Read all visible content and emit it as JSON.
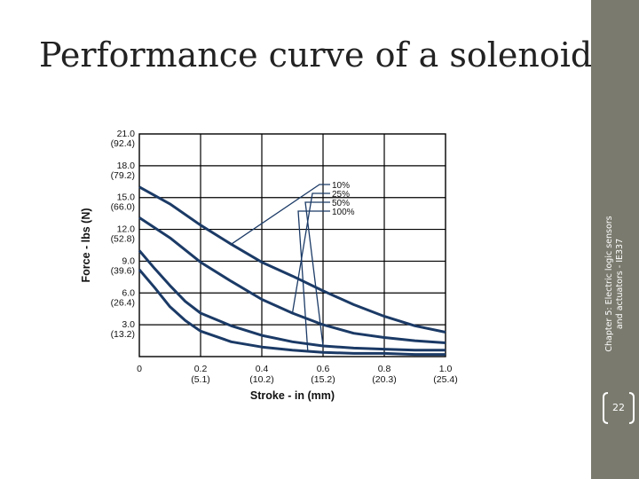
{
  "slide": {
    "title": "Performance curve of a solenoid",
    "sidebar_line1": "Chapter 5: Electric logic sensors",
    "sidebar_line2": "and actuators - IE337",
    "page_number": "22"
  },
  "colors": {
    "sidebar": "#7a7a6e",
    "curve": "#1b3a66",
    "grid": "#000000"
  },
  "chart_data": {
    "type": "line",
    "xlabel": "Stroke - in (mm)",
    "ylabel": "Force - lbs (N)",
    "xlim": [
      0,
      1.0
    ],
    "ylim": [
      0,
      21.0
    ],
    "x_ticks": [
      {
        "value": 0,
        "line1": "0",
        "line2": ""
      },
      {
        "value": 0.2,
        "line1": "0.2",
        "line2": "(5.1)"
      },
      {
        "value": 0.4,
        "line1": "0.4",
        "line2": "(10.2)"
      },
      {
        "value": 0.6,
        "line1": "0.6",
        "line2": "(15.2)"
      },
      {
        "value": 0.8,
        "line1": "0.8",
        "line2": "(20.3)"
      },
      {
        "value": 1.0,
        "line1": "1.0",
        "line2": "(25.4)"
      }
    ],
    "y_ticks": [
      {
        "value": 3.0,
        "line1": "3.0",
        "line2": "(13.2)"
      },
      {
        "value": 6.0,
        "line1": "6.0",
        "line2": "(26.4)"
      },
      {
        "value": 9.0,
        "line1": "9.0",
        "line2": "(39.6)"
      },
      {
        "value": 12.0,
        "line1": "12.0",
        "line2": "(52.8)"
      },
      {
        "value": 15.0,
        "line1": "15.0",
        "line2": "(66.0)"
      },
      {
        "value": 18.0,
        "line1": "18.0",
        "line2": "(79.2)"
      },
      {
        "value": 21.0,
        "line1": "21.0",
        "line2": "(92.4)"
      }
    ],
    "grid": true,
    "series": [
      {
        "name": "10%",
        "x": [
          0,
          0.1,
          0.2,
          0.3,
          0.4,
          0.5,
          0.6,
          0.7,
          0.8,
          0.9,
          1.0
        ],
        "y": [
          16.0,
          14.4,
          12.4,
          10.6,
          8.9,
          7.6,
          6.2,
          4.9,
          3.8,
          2.9,
          2.3
        ]
      },
      {
        "name": "25%",
        "x": [
          0,
          0.1,
          0.2,
          0.3,
          0.4,
          0.5,
          0.6,
          0.7,
          0.8,
          0.9,
          1.0
        ],
        "y": [
          13.1,
          11.2,
          8.9,
          7.1,
          5.4,
          4.1,
          3.0,
          2.2,
          1.8,
          1.5,
          1.3
        ]
      },
      {
        "name": "50%",
        "x": [
          0,
          0.05,
          0.1,
          0.15,
          0.2,
          0.3,
          0.4,
          0.5,
          0.6,
          0.7,
          0.8,
          0.9,
          1.0
        ],
        "y": [
          10.0,
          8.3,
          6.7,
          5.2,
          4.1,
          2.9,
          2.0,
          1.4,
          1.0,
          0.8,
          0.7,
          0.6,
          0.6
        ]
      },
      {
        "name": "100%",
        "x": [
          0,
          0.05,
          0.1,
          0.15,
          0.2,
          0.3,
          0.4,
          0.5,
          0.6,
          0.7,
          0.8,
          0.9,
          1.0
        ],
        "y": [
          8.2,
          6.5,
          4.7,
          3.4,
          2.4,
          1.4,
          0.9,
          0.6,
          0.4,
          0.3,
          0.3,
          0.2,
          0.2
        ]
      }
    ],
    "legend_placement": "top-center"
  }
}
